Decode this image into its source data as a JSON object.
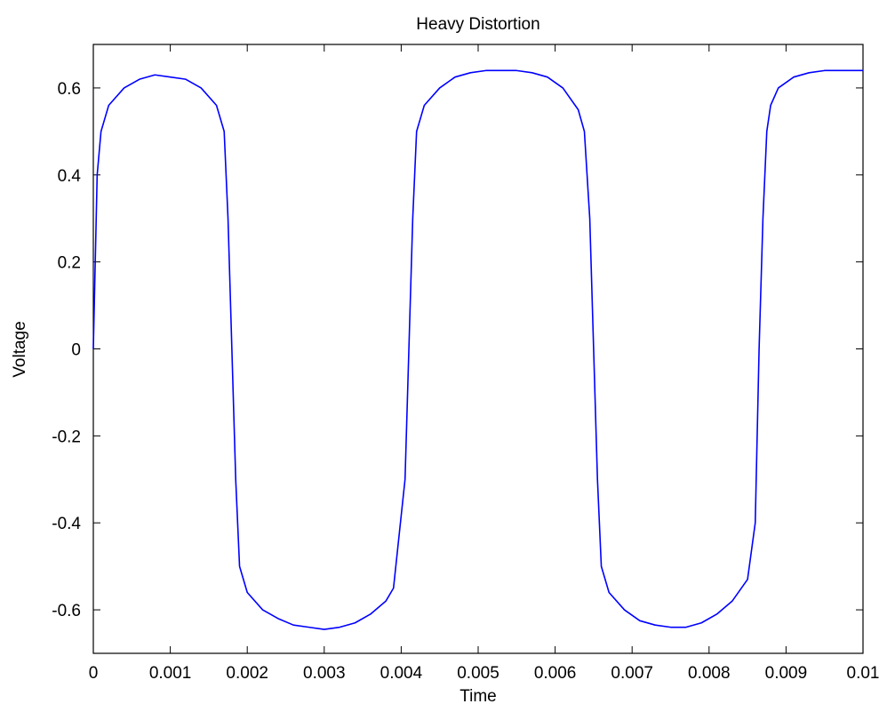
{
  "chart_data": {
    "type": "line",
    "title": "Heavy Distortion",
    "xlabel": "Time",
    "ylabel": "Voltage",
    "xlim": [
      0,
      0.01
    ],
    "ylim": [
      -0.7,
      0.7
    ],
    "grid": false,
    "x_ticks": [
      0,
      0.001,
      0.002,
      0.003,
      0.004,
      0.005,
      0.006,
      0.007,
      0.008,
      0.009,
      0.01
    ],
    "x_tick_labels": [
      "0",
      "0.001",
      "0.002",
      "0.003",
      "0.004",
      "0.005",
      "0.006",
      "0.007",
      "0.008",
      "0.009",
      "0.01"
    ],
    "y_ticks": [
      -0.6,
      -0.4,
      -0.2,
      0,
      0.2,
      0.4,
      0.6
    ],
    "y_tick_labels": [
      "-0.6",
      "-0.4",
      "-0.2",
      "0",
      "0.2",
      "0.4",
      "0.6"
    ],
    "series": [
      {
        "color": "#0000ff",
        "x": [
          0,
          5e-05,
          0.0001,
          0.0002,
          0.0004,
          0.0006,
          0.0008,
          0.001,
          0.0012,
          0.0014,
          0.0016,
          0.0017,
          0.00175,
          0.0018,
          0.00185,
          0.0019,
          0.002,
          0.0022,
          0.0024,
          0.0026,
          0.0028,
          0.003,
          0.0032,
          0.0034,
          0.0036,
          0.0038,
          0.0039,
          0.00405,
          0.0041,
          0.00415,
          0.0042,
          0.0043,
          0.0045,
          0.0047,
          0.0049,
          0.0051,
          0.0053,
          0.0055,
          0.0057,
          0.0059,
          0.0061,
          0.0063,
          0.00638,
          0.00645,
          0.0065,
          0.00655,
          0.0066,
          0.0067,
          0.0069,
          0.0071,
          0.0073,
          0.0075,
          0.0077,
          0.0079,
          0.0081,
          0.0083,
          0.0085,
          0.0086,
          0.00865,
          0.0087,
          0.00875,
          0.0088,
          0.0089,
          0.0091,
          0.0093,
          0.0095,
          0.0097,
          0.0099,
          0.01
        ],
        "y": [
          0,
          0.4,
          0.5,
          0.56,
          0.6,
          0.62,
          0.63,
          0.625,
          0.62,
          0.6,
          0.56,
          0.5,
          0.3,
          0,
          -0.3,
          -0.5,
          -0.56,
          -0.6,
          -0.62,
          -0.635,
          -0.64,
          -0.645,
          -0.64,
          -0.63,
          -0.61,
          -0.58,
          -0.55,
          -0.3,
          0,
          0.3,
          0.5,
          0.56,
          0.6,
          0.625,
          0.635,
          0.64,
          0.64,
          0.64,
          0.635,
          0.625,
          0.6,
          0.55,
          0.5,
          0.3,
          0,
          -0.3,
          -0.5,
          -0.56,
          -0.6,
          -0.625,
          -0.635,
          -0.64,
          -0.64,
          -0.63,
          -0.61,
          -0.58,
          -0.53,
          -0.4,
          0,
          0.3,
          0.5,
          0.56,
          0.6,
          0.625,
          0.635,
          0.64,
          0.64,
          0.64,
          0.64
        ]
      }
    ]
  }
}
